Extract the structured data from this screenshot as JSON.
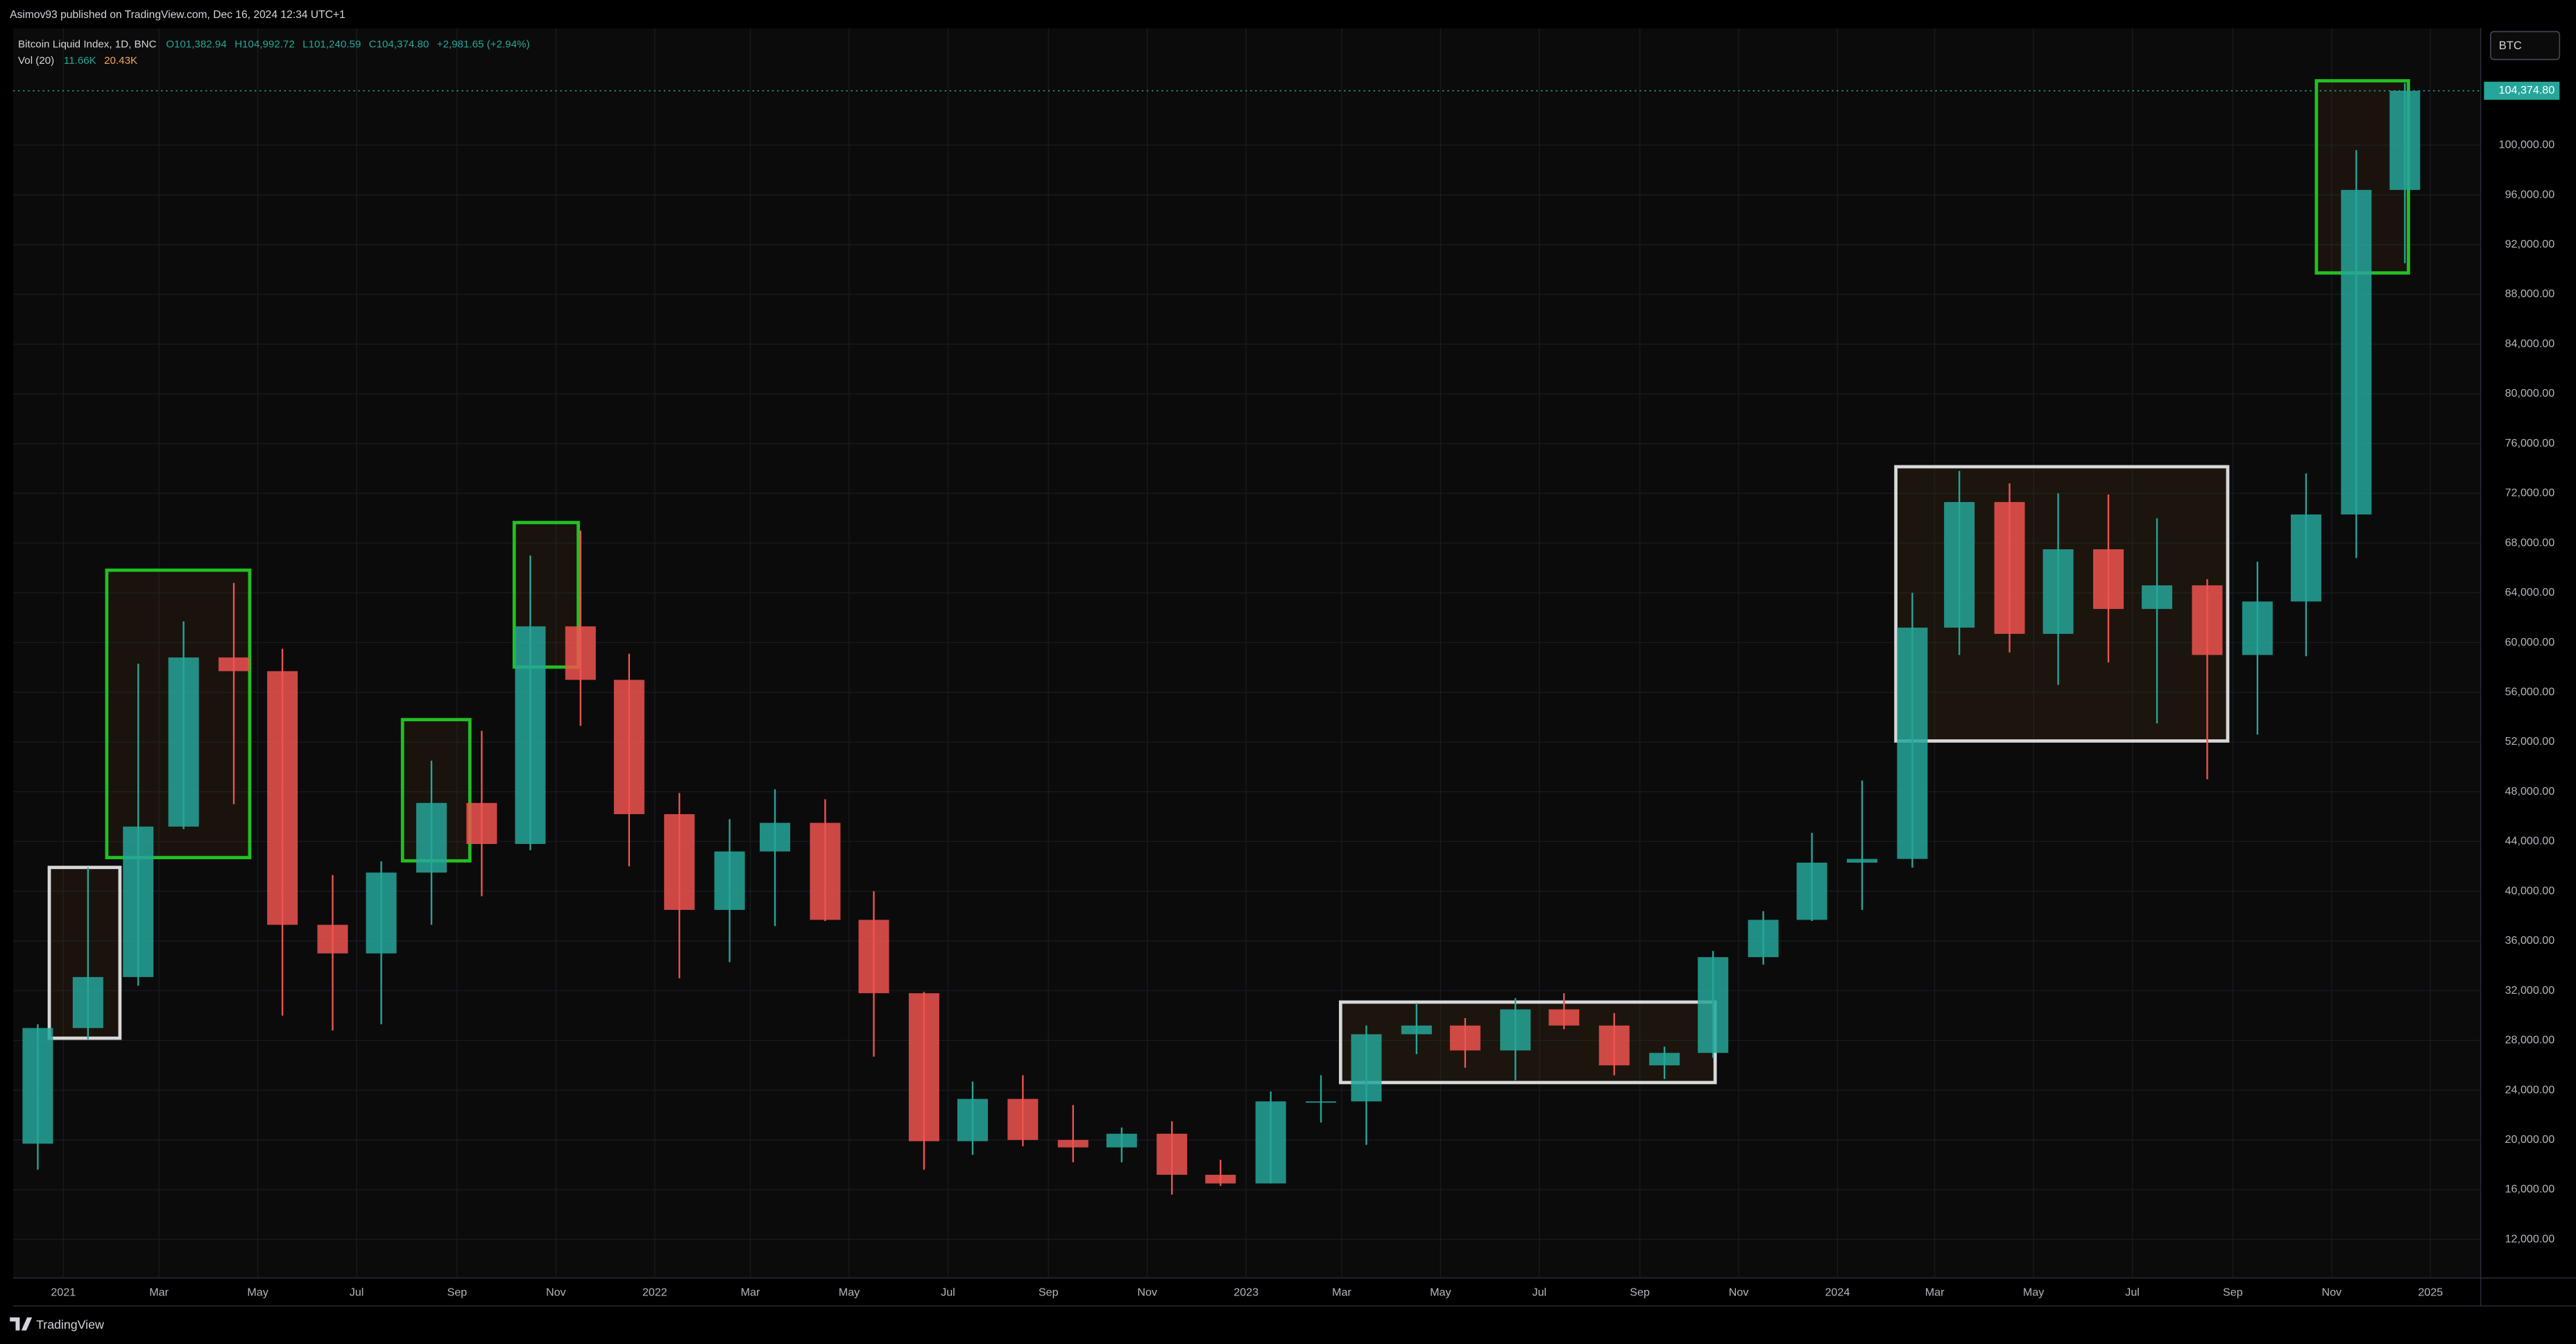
{
  "chart_data": {
    "type": "candlestick",
    "publisher": "Asimov93 published on TradingView.com, Dec 16, 2024 12:34 UTC+1",
    "title": "Bitcoin Liquid Index, 1D, BNC",
    "ohlc_labels": [
      "O101,382.94",
      "H104,992.72",
      "L101,240.59",
      "C104,374.80",
      "+2,981.65 (+2.94%)"
    ],
    "volume_label": "Vol (20)",
    "volume_values": [
      "11.66K",
      "20.43K"
    ],
    "symbol_button": "BTC",
    "brand": "TradingView",
    "up_color": "#26a69a",
    "down_color": "#ef5350",
    "grid": true,
    "x": [
      "2020-12",
      "2021-01",
      "2021-02",
      "2021-03",
      "2021-04",
      "2021-05",
      "2021-06",
      "2021-07",
      "2021-08",
      "2021-09",
      "2021-10",
      "2021-11",
      "2021-12",
      "2022-01",
      "2022-02",
      "2022-03",
      "2022-04",
      "2022-05",
      "2022-06",
      "2022-07",
      "2022-08",
      "2022-09",
      "2022-10",
      "2022-11",
      "2022-12",
      "2023-01",
      "2023-02",
      "2023-03",
      "2023-04",
      "2023-05",
      "2023-06",
      "2023-07",
      "2023-08",
      "2023-09",
      "2023-10",
      "2023-11",
      "2023-12",
      "2024-01",
      "2024-02",
      "2024-03",
      "2024-04",
      "2024-05",
      "2024-06",
      "2024-07",
      "2024-08",
      "2024-09",
      "2024-10",
      "2024-11",
      "2024-12"
    ],
    "open": [
      19700,
      29000,
      33100,
      45200,
      58800,
      57700,
      37300,
      35000,
      41500,
      47100,
      43800,
      61300,
      57000,
      46200,
      38500,
      43200,
      45500,
      37700,
      31800,
      19900,
      23300,
      20000,
      19400,
      20500,
      17200,
      16500,
      23100,
      23100,
      28500,
      29200,
      27200,
      30500,
      29200,
      26000,
      27000,
      34700,
      37700,
      42300,
      42600,
      61200,
      71300,
      60700,
      67500,
      62700,
      64600,
      59000,
      63300,
      70300,
      96400
    ],
    "high": [
      29300,
      41900,
      58300,
      61700,
      64800,
      59500,
      41300,
      42400,
      50500,
      52900,
      67000,
      69000,
      59100,
      47900,
      45800,
      48200,
      47400,
      40000,
      31900,
      24700,
      25200,
      22800,
      21000,
      21500,
      18400,
      23900,
      25200,
      29200,
      31000,
      29800,
      31400,
      31800,
      30200,
      27500,
      35200,
      38400,
      44700,
      48900,
      64000,
      73800,
      72800,
      72000,
      71900,
      70000,
      65100,
      66500,
      73600,
      99600,
      104992.72
    ],
    "low": [
      17600,
      28100,
      32400,
      45000,
      47000,
      30000,
      28800,
      29300,
      37300,
      39600,
      43300,
      53300,
      42000,
      33000,
      34300,
      37200,
      37600,
      26700,
      17600,
      18800,
      19500,
      18200,
      18200,
      15600,
      16300,
      16500,
      21400,
      19600,
      26900,
      25800,
      24800,
      28900,
      25200,
      24900,
      26600,
      34100,
      37600,
      38500,
      41900,
      59000,
      59200,
      56600,
      58400,
      53500,
      49000,
      52600,
      58900,
      66800,
      90500
    ],
    "close": [
      29000,
      33100,
      45200,
      58800,
      57700,
      37300,
      35000,
      41500,
      47100,
      43800,
      61300,
      57000,
      46200,
      38500,
      43200,
      45500,
      37700,
      31800,
      19900,
      23300,
      20000,
      19400,
      20500,
      17200,
      16500,
      23100,
      23100,
      28500,
      29200,
      27200,
      30500,
      29200,
      26000,
      27000,
      34700,
      37700,
      42300,
      42600,
      61200,
      71300,
      60700,
      67500,
      62700,
      64600,
      59000,
      63300,
      70300,
      96400,
      104374.8
    ],
    "xlim": [
      "2020-12",
      "2025-02"
    ],
    "xticks": [
      {
        "value": "2021-01",
        "label": "2021"
      },
      {
        "value": "2021-03",
        "label": "Mar"
      },
      {
        "value": "2021-05",
        "label": "May"
      },
      {
        "value": "2021-07",
        "label": "Jul"
      },
      {
        "value": "2021-09",
        "label": "Sep"
      },
      {
        "value": "2021-11",
        "label": "Nov"
      },
      {
        "value": "2022-01",
        "label": "2022"
      },
      {
        "value": "2022-03",
        "label": "Mar"
      },
      {
        "value": "2022-05",
        "label": "May"
      },
      {
        "value": "2022-07",
        "label": "Jul"
      },
      {
        "value": "2022-09",
        "label": "Sep"
      },
      {
        "value": "2022-11",
        "label": "Nov"
      },
      {
        "value": "2023-01",
        "label": "2023"
      },
      {
        "value": "2023-03",
        "label": "Mar"
      },
      {
        "value": "2023-05",
        "label": "May"
      },
      {
        "value": "2023-07",
        "label": "Jul"
      },
      {
        "value": "2023-09",
        "label": "Sep"
      },
      {
        "value": "2023-11",
        "label": "Nov"
      },
      {
        "value": "2024-01",
        "label": "2024"
      },
      {
        "value": "2024-03",
        "label": "Mar"
      },
      {
        "value": "2024-05",
        "label": "May"
      },
      {
        "value": "2024-07",
        "label": "Jul"
      },
      {
        "value": "2024-09",
        "label": "Sep"
      },
      {
        "value": "2024-11",
        "label": "Nov"
      },
      {
        "value": "2025-01",
        "label": "2025"
      }
    ],
    "ylim": [
      8900,
      109400
    ],
    "yticks": [
      {
        "value": 12000,
        "label": "12,000.00"
      },
      {
        "value": 16000,
        "label": "16,000.00"
      },
      {
        "value": 20000,
        "label": "20,000.00"
      },
      {
        "value": 24000,
        "label": "24,000.00"
      },
      {
        "value": 28000,
        "label": "28,000.00"
      },
      {
        "value": 32000,
        "label": "32,000.00"
      },
      {
        "value": 36000,
        "label": "36,000.00"
      },
      {
        "value": 40000,
        "label": "40,000.00"
      },
      {
        "value": 44000,
        "label": "44,000.00"
      },
      {
        "value": 48000,
        "label": "48,000.00"
      },
      {
        "value": 52000,
        "label": "52,000.00"
      },
      {
        "value": 56000,
        "label": "56,000.00"
      },
      {
        "value": 60000,
        "label": "60,000.00"
      },
      {
        "value": 64000,
        "label": "64,000.00"
      },
      {
        "value": 68000,
        "label": "68,000.00"
      },
      {
        "value": 72000,
        "label": "72,000.00"
      },
      {
        "value": 76000,
        "label": "76,000.00"
      },
      {
        "value": 80000,
        "label": "80,000.00"
      },
      {
        "value": 84000,
        "label": "84,000.00"
      },
      {
        "value": 88000,
        "label": "88,000.00"
      },
      {
        "value": 92000,
        "label": "92,000.00"
      },
      {
        "value": 96000,
        "label": "96,000.00"
      },
      {
        "value": 100000,
        "label": "100,000.00"
      }
    ],
    "last_price": {
      "value": 104374.8,
      "label": "104,374.80"
    }
  }
}
